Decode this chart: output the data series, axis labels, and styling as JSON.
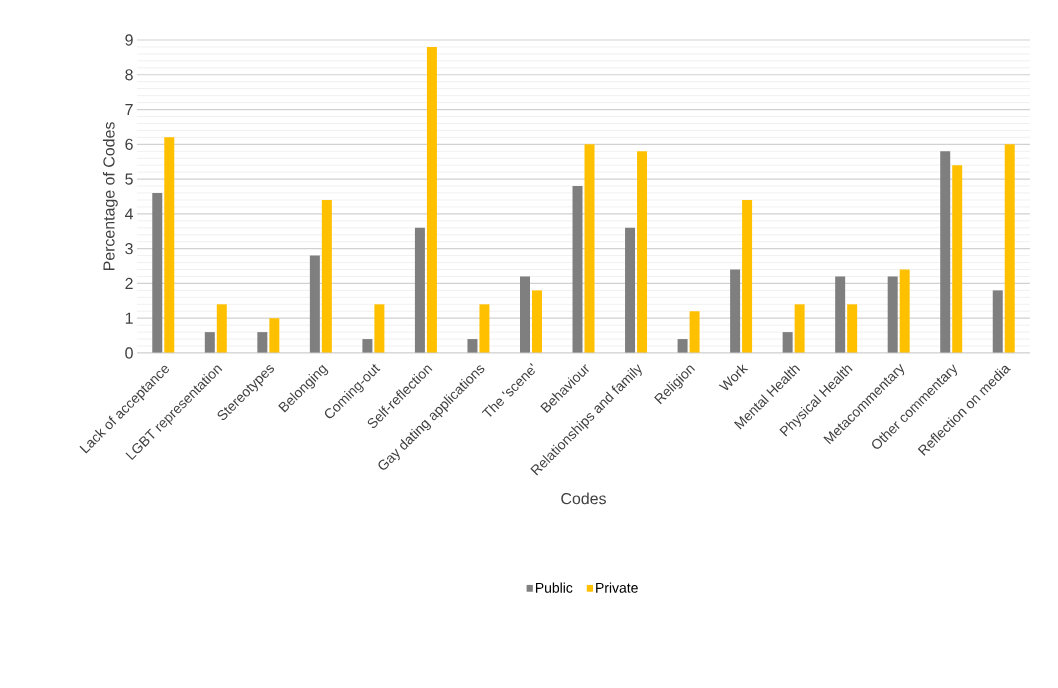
{
  "chart_data": {
    "type": "bar",
    "xlabel": "Codes",
    "ylabel": "Percentage of Codes",
    "categories": [
      "Lack of acceptance",
      "LGBT representation",
      "Stereotypes",
      "Belonging",
      "Coming-out",
      "Self-reflection",
      "Gay dating applications",
      "The 'scene'",
      "Behaviour",
      "Relationships and family",
      "Religion",
      "Work",
      "Mental Health",
      "Physical Health",
      "Metacommentary",
      "Other commentary",
      "Reflection on media"
    ],
    "series": [
      {
        "name": "Public",
        "color": "#7f7f7f",
        "values": [
          4.6,
          0.6,
          0.6,
          2.8,
          0.4,
          3.6,
          0.4,
          2.2,
          4.8,
          3.6,
          0.4,
          2.4,
          0.6,
          2.2,
          2.2,
          5.8,
          1.8
        ]
      },
      {
        "name": "Private",
        "color": "#ffc000",
        "values": [
          6.2,
          1.4,
          1.0,
          4.4,
          1.4,
          8.8,
          1.4,
          1.8,
          6.0,
          5.8,
          1.2,
          4.4,
          1.4,
          1.4,
          2.4,
          5.4,
          6.0
        ]
      }
    ],
    "ylim": [
      0,
      9
    ],
    "yticks": [
      0,
      1,
      2,
      3,
      4,
      5,
      6,
      7,
      8,
      9
    ],
    "grid": "y",
    "legend": "bottom"
  }
}
